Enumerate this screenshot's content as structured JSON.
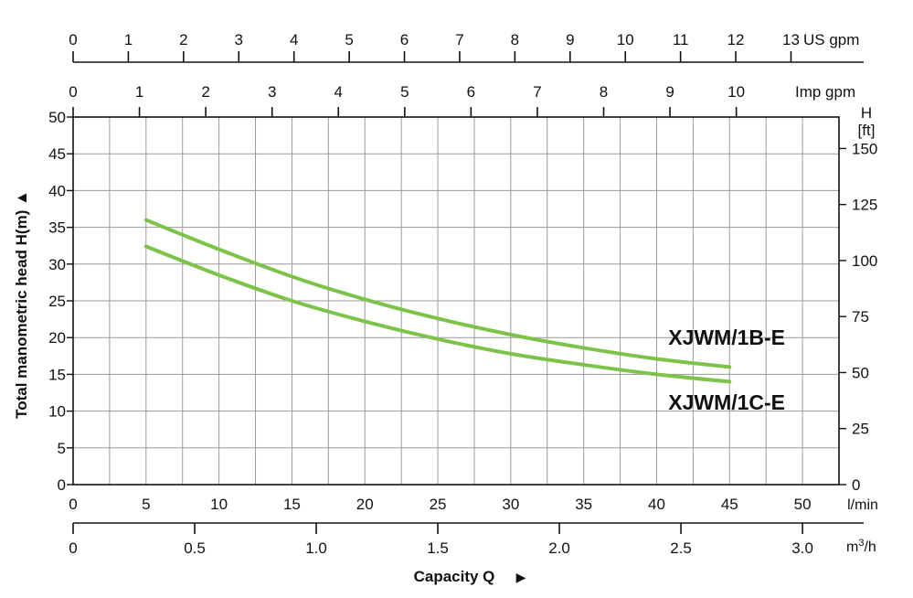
{
  "chart_data": {
    "type": "line",
    "x_unit": "l/min",
    "xlim": [
      0,
      52.5
    ],
    "ylim": [
      0,
      50
    ],
    "ylabel": "Total manometric head H(m)",
    "xlabel": "Capacity Q",
    "grid": true,
    "series": [
      {
        "name": "XJWM/1B-E",
        "x": [
          5,
          10,
          15,
          20,
          25,
          30,
          35,
          40,
          45
        ],
        "y": [
          36,
          32,
          28.3,
          25.2,
          22.6,
          20.4,
          18.6,
          17.1,
          16
        ]
      },
      {
        "name": "XJWM/1C-E",
        "x": [
          5,
          10,
          15,
          20,
          25,
          30,
          35,
          40,
          45
        ],
        "y": [
          32.4,
          28.5,
          25,
          22.2,
          19.8,
          17.8,
          16.3,
          15,
          14
        ]
      }
    ],
    "axes": {
      "lmin": {
        "unit": "l/min",
        "ticks": [
          0,
          5,
          10,
          15,
          20,
          25,
          30,
          35,
          40,
          45,
          50
        ]
      },
      "m3h": {
        "unit": "m³/h",
        "unit_base": "m",
        "unit_sup": "3",
        "unit_tail": "/h",
        "ticks": [
          "0",
          "0.5",
          "1.0",
          "1.5",
          "2.0",
          "2.5",
          "3.0"
        ]
      },
      "us_gpm": {
        "unit": "US gpm",
        "ticks": [
          0,
          1,
          2,
          3,
          4,
          5,
          6,
          7,
          8,
          9,
          10,
          11,
          12,
          13
        ]
      },
      "imp_gpm": {
        "unit": "Imp gpm",
        "ticks": [
          0,
          1,
          2,
          3,
          4,
          5,
          6,
          7,
          8,
          9,
          10
        ]
      },
      "h_m": {
        "ticks": [
          0,
          5,
          10,
          15,
          20,
          25,
          30,
          35,
          40,
          45,
          50
        ]
      },
      "h_ft": {
        "title": "H",
        "unit": "[ft]",
        "ticks": [
          0,
          25,
          50,
          75,
          100,
          125,
          150
        ]
      }
    },
    "colors": {
      "curve": "#7cc34a",
      "grid": "#9a9a9a",
      "axis": "#111111"
    }
  }
}
